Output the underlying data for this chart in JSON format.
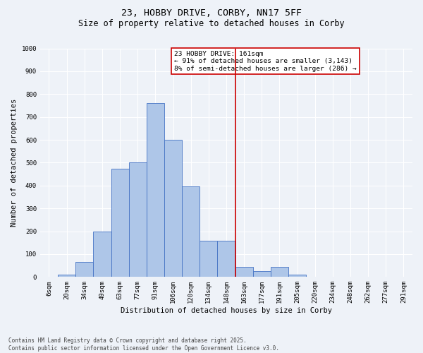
{
  "title": "23, HOBBY DRIVE, CORBY, NN17 5FF",
  "subtitle": "Size of property relative to detached houses in Corby",
  "xlabel": "Distribution of detached houses by size in Corby",
  "ylabel": "Number of detached properties",
  "bar_labels": [
    "6sqm",
    "20sqm",
    "34sqm",
    "49sqm",
    "63sqm",
    "77sqm",
    "91sqm",
    "106sqm",
    "120sqm",
    "134sqm",
    "148sqm",
    "163sqm",
    "177sqm",
    "191sqm",
    "205sqm",
    "220sqm",
    "234sqm",
    "248sqm",
    "262sqm",
    "277sqm",
    "291sqm"
  ],
  "bar_values": [
    0,
    10,
    65,
    200,
    475,
    500,
    760,
    600,
    395,
    160,
    160,
    45,
    25,
    45,
    10,
    0,
    0,
    0,
    0,
    0,
    0
  ],
  "bar_color": "#aec6e8",
  "bar_edge_color": "#4472c4",
  "background_color": "#eef2f8",
  "grid_color": "#ffffff",
  "vline_color": "#cc0000",
  "vline_pos": 10.5,
  "annotation_text": "23 HOBBY DRIVE: 161sqm\n← 91% of detached houses are smaller (3,143)\n8% of semi-detached houses are larger (286) →",
  "annotation_box_color": "#ffffff",
  "annotation_box_edge_color": "#cc0000",
  "ylim": [
    0,
    1000
  ],
  "yticks": [
    0,
    100,
    200,
    300,
    400,
    500,
    600,
    700,
    800,
    900,
    1000
  ],
  "footnote": "Contains HM Land Registry data © Crown copyright and database right 2025.\nContains public sector information licensed under the Open Government Licence v3.0.",
  "title_fontsize": 9.5,
  "subtitle_fontsize": 8.5,
  "axis_label_fontsize": 7.5,
  "tick_fontsize": 6.5,
  "annotation_fontsize": 6.8,
  "footnote_fontsize": 5.5
}
